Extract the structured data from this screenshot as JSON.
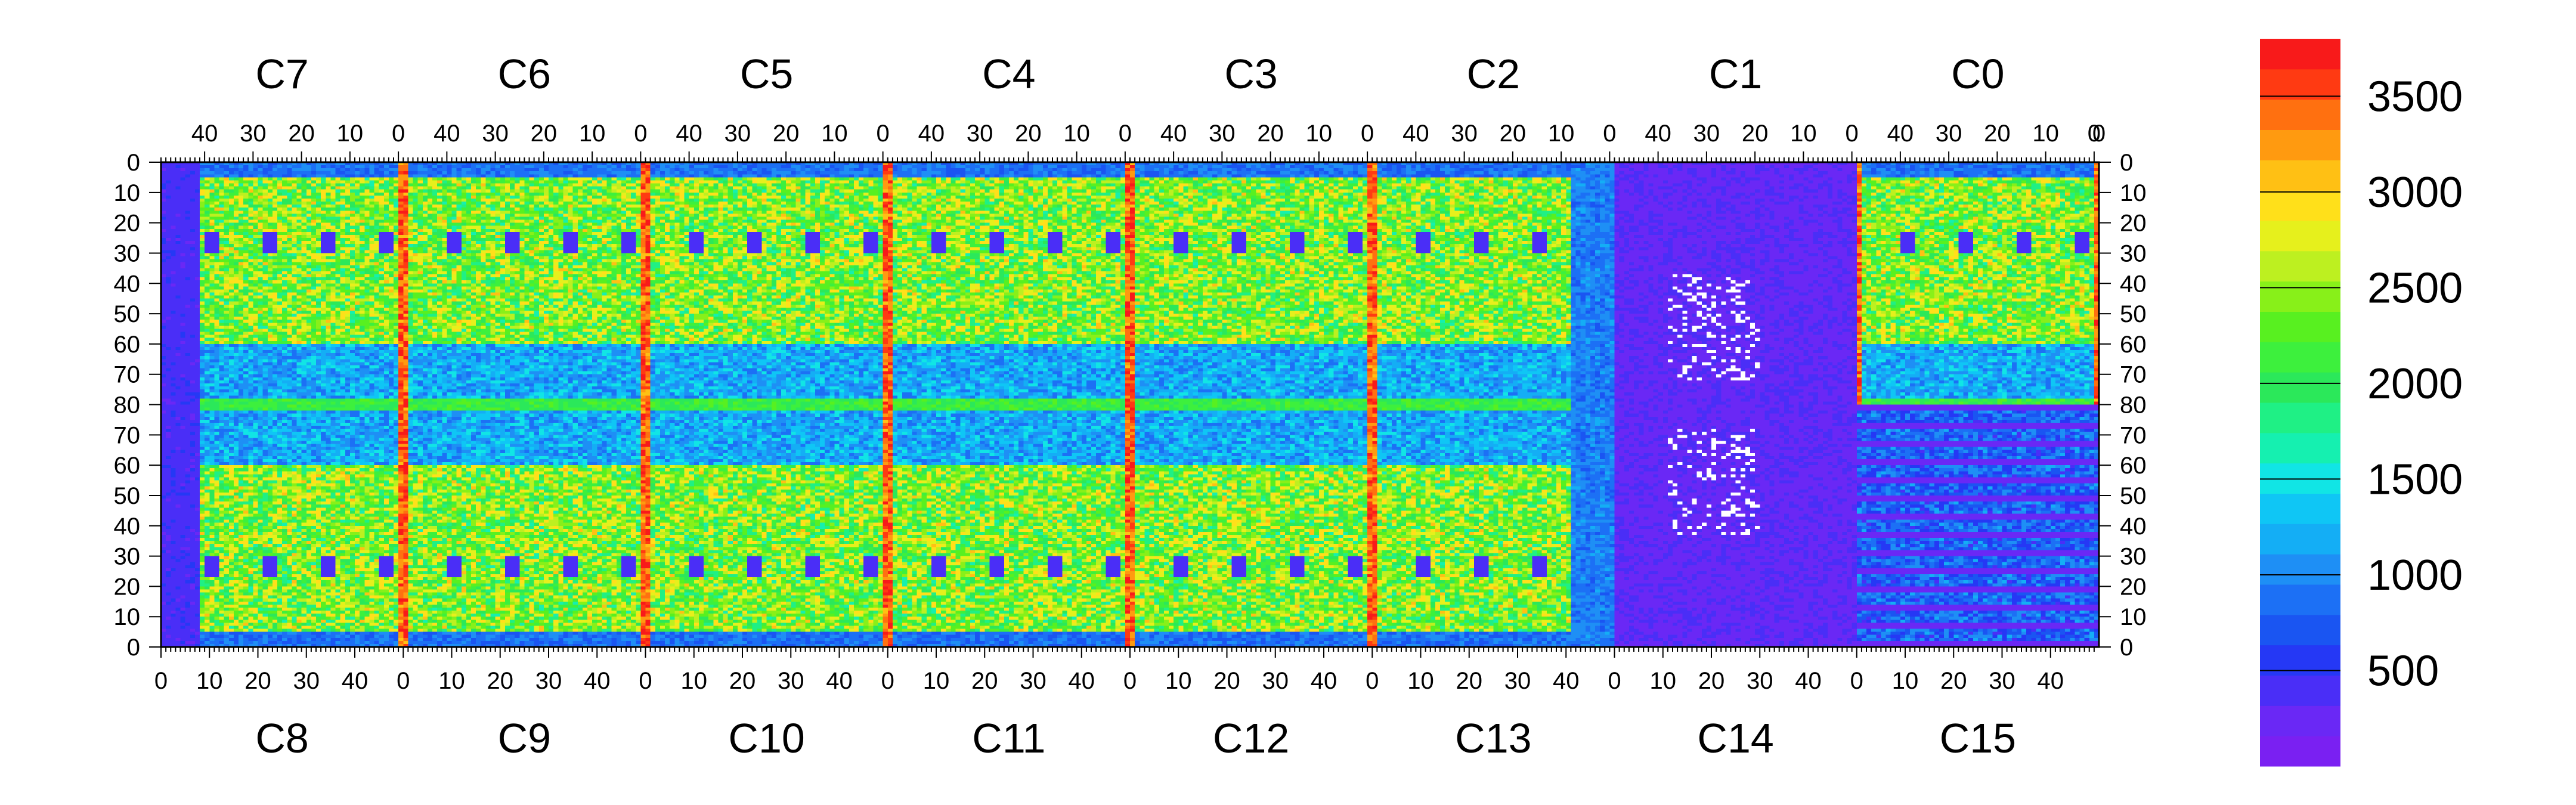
{
  "chart_data": {
    "type": "heatmap",
    "title": "",
    "top_chips": [
      "C7",
      "C6",
      "C5",
      "C4",
      "C3",
      "C2",
      "C1",
      "C0"
    ],
    "bottom_chips": [
      "C8",
      "C9",
      "C10",
      "C11",
      "C12",
      "C13",
      "C14",
      "C15"
    ],
    "top_tick_labels": [
      "40",
      "30",
      "20",
      "10",
      "0"
    ],
    "bottom_tick_labels": [
      "0",
      "10",
      "20",
      "30",
      "40"
    ],
    "left_y_ticks": [
      "0",
      "10",
      "20",
      "30",
      "40",
      "50",
      "60",
      "70",
      "80",
      "70",
      "60",
      "50",
      "40",
      "30",
      "20",
      "10",
      "0"
    ],
    "right_y_ticks": [
      "0",
      "10",
      "20",
      "30",
      "40",
      "50",
      "60",
      "70",
      "80",
      "70",
      "60",
      "50",
      "40",
      "30",
      "20",
      "10",
      "0"
    ],
    "colorbar": {
      "min": 0,
      "max": 3800,
      "tick_values": [
        500,
        1000,
        1500,
        2000,
        2500,
        3000,
        3500
      ],
      "tick_labels": [
        "500",
        "1000",
        "1500",
        "2000",
        "2500",
        "3000",
        "3500"
      ],
      "colors": [
        "#7a20f2",
        "#6a28f5",
        "#4a2ef7",
        "#2538f5",
        "#1a55f2",
        "#1c70f5",
        "#1e8ff5",
        "#14aef5",
        "#0fc6f5",
        "#11e5e5",
        "#15f0b0",
        "#1ff085",
        "#2be85a",
        "#3df03d",
        "#58f020",
        "#88f019",
        "#bdf020",
        "#e6f01c",
        "#ffe01a",
        "#ffc014",
        "#ff9a10",
        "#ff7010",
        "#ff3a12",
        "#f81a1a"
      ]
    },
    "x_range": [
      0,
      400
    ],
    "y_range": [
      0,
      160
    ],
    "grid": false,
    "legend": "colorbar-right"
  }
}
